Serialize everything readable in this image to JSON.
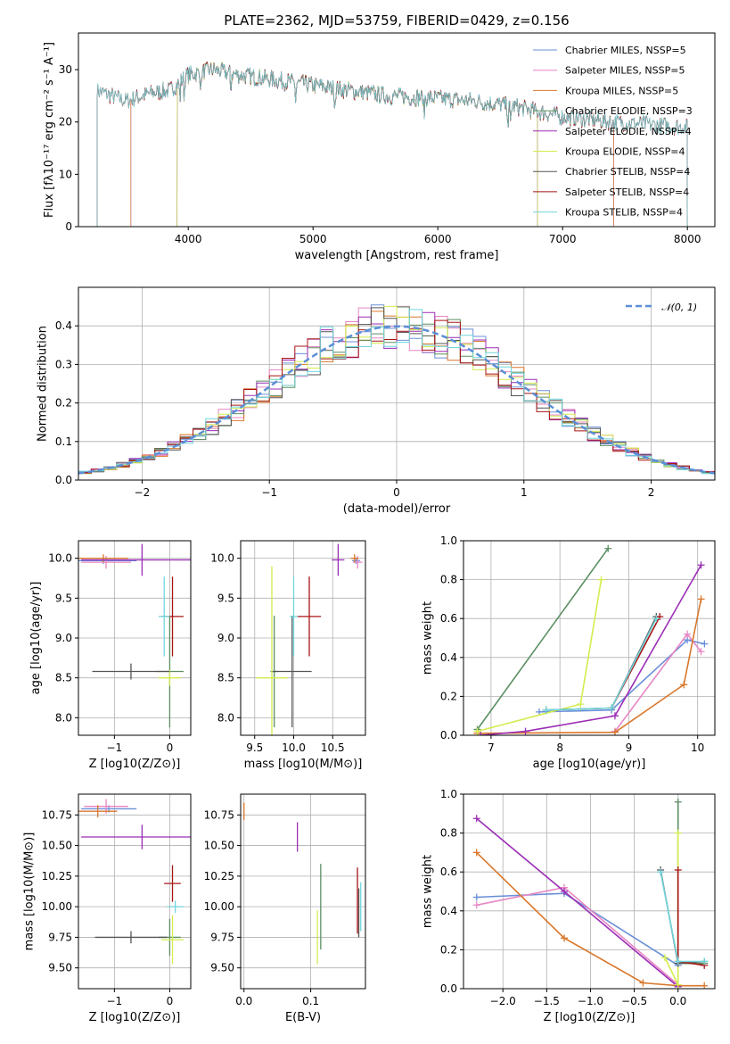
{
  "title": "PLATE=2362, MJD=53759, FIBERID=0429, z=0.156",
  "colors": [
    "#6a8fd8",
    "#e787c4",
    "#d9772b",
    "#5b8f62",
    "#9b2db5",
    "#d4ec4e",
    "#555555",
    "#a81515",
    "#6fd6dc"
  ],
  "chart_data": [
    {
      "id": "spectrum",
      "type": "line",
      "xlabel": "wavelength [Angstrom, rest frame]",
      "ylabel": "Flux [fλ10⁻¹⁷ erg cm⁻² s⁻¹ A⁻¹]",
      "xlim": [
        3120,
        8220
      ],
      "ylim": [
        0,
        37
      ],
      "xticks": [
        4000,
        5000,
        6000,
        7000,
        8000
      ],
      "yticks": [
        0,
        10,
        20,
        30
      ],
      "grid": false,
      "legend": "right",
      "series": [
        {
          "name": "Chabrier MILES, NSSP=5",
          "coverage": [
            3540,
            7410
          ]
        },
        {
          "name": "Salpeter MILES, NSSP=5",
          "coverage": [
            3540,
            7410
          ]
        },
        {
          "name": "Kroupa MILES, NSSP=5",
          "coverage": [
            3540,
            7410
          ]
        },
        {
          "name": "Chabrier ELODIE, NSSP=3",
          "coverage": [
            3910,
            6800
          ]
        },
        {
          "name": "Salpeter ELODIE, NSSP=4",
          "coverage": [
            3910,
            6800
          ]
        },
        {
          "name": "Kroupa ELODIE, NSSP=4",
          "coverage": [
            3910,
            6800
          ]
        },
        {
          "name": "Chabrier STELIB, NSSP=4",
          "coverage": [
            3270,
            8000
          ]
        },
        {
          "name": "Salpeter STELIB, NSSP=4",
          "coverage": [
            3270,
            8000
          ]
        },
        {
          "name": "Kroupa STELIB, NSSP=4",
          "coverage": [
            3270,
            8000
          ]
        }
      ],
      "continuum": [
        [
          3270,
          26
        ],
        [
          3500,
          24
        ],
        [
          3700,
          25.5
        ],
        [
          3850,
          26
        ],
        [
          4000,
          29
        ],
        [
          4200,
          30
        ],
        [
          4400,
          29
        ],
        [
          4700,
          28
        ],
        [
          5000,
          27
        ],
        [
          5300,
          26
        ],
        [
          5600,
          25
        ],
        [
          6000,
          24.5
        ],
        [
          6300,
          24
        ],
        [
          6600,
          23
        ],
        [
          7000,
          21
        ],
        [
          7400,
          20
        ],
        [
          7700,
          19.5
        ],
        [
          8000,
          19
        ]
      ]
    },
    {
      "id": "residuals",
      "type": "line",
      "xlabel": "(data-model)/error",
      "ylabel": "Normed distribution",
      "xlim": [
        -2.5,
        2.5
      ],
      "ylim": [
        0,
        0.5
      ],
      "xticks": [
        -2,
        -1,
        0,
        1,
        2
      ],
      "yticks": [
        0.0,
        0.1,
        0.2,
        0.3,
        0.4
      ],
      "grid": true,
      "legend": "top-right",
      "reference": {
        "name": "𝒩(0, 1)",
        "mean": 0,
        "sigma": 1,
        "color": "#5a8fd6"
      },
      "bin_width": 0.1
    },
    {
      "id": "age-vs-Z",
      "type": "scatter",
      "xlabel": "Z [log10(Z/Z⊙)]",
      "ylabel": "age  [log10(age/yr)]",
      "xlim": [
        -1.65,
        0.38
      ],
      "ylim": [
        7.78,
        10.22
      ],
      "xticks": [
        -1,
        0
      ],
      "yticks": [
        8.0,
        8.5,
        9.0,
        9.5,
        10.0
      ],
      "grid": true,
      "points": [
        {
          "c": 0,
          "x": -1.2,
          "y": 9.97,
          "ex": 0.6,
          "ey": 0.04
        },
        {
          "c": 1,
          "x": -1.15,
          "y": 9.95,
          "ex": 0.45,
          "ey": 0.08
        },
        {
          "c": 2,
          "x": -1.2,
          "y": 10.0,
          "ex": 0.45,
          "ey": 0.05
        },
        {
          "c": 3,
          "x": 0.0,
          "y": 8.58,
          "ex": 0.25,
          "ey": 0.7
        },
        {
          "c": 4,
          "x": -0.5,
          "y": 9.98,
          "ex": 1.1,
          "ey": 0.2
        },
        {
          "c": 5,
          "x": 0.0,
          "y": 8.5,
          "ex": 0.2,
          "ey": 0.1
        },
        {
          "c": 6,
          "x": -0.7,
          "y": 8.58,
          "ex": 0.7,
          "ey": 0.1
        },
        {
          "c": 7,
          "x": 0.05,
          "y": 9.27,
          "ex": 0.2,
          "ey": 0.5
        },
        {
          "c": 8,
          "x": -0.1,
          "y": 9.27,
          "ex": 0.1,
          "ey": 0.5
        }
      ]
    },
    {
      "id": "age-vs-mass",
      "type": "scatter",
      "xlabel": "mass [log10(M/M⊙)]",
      "ylabel": "",
      "xlim": [
        9.32,
        10.92
      ],
      "ylim": [
        7.78,
        10.22
      ],
      "xticks": [
        9.5,
        10.0,
        10.5
      ],
      "yticks": [
        8.0,
        8.5,
        9.0,
        9.5,
        10.0
      ],
      "grid": true,
      "points": [
        {
          "c": 0,
          "x": 10.8,
          "y": 9.97,
          "ex": 0.05,
          "ey": 0.04
        },
        {
          "c": 1,
          "x": 10.82,
          "y": 9.95,
          "ex": 0.06,
          "ey": 0.08
        },
        {
          "c": 2,
          "x": 10.78,
          "y": 10.0,
          "ex": 0.05,
          "ey": 0.05
        },
        {
          "c": 3,
          "x": 9.75,
          "y": 8.58,
          "ex": 0.05,
          "ey": 0.7
        },
        {
          "c": 4,
          "x": 10.57,
          "y": 9.98,
          "ex": 0.08,
          "ey": 0.2
        },
        {
          "c": 5,
          "x": 9.72,
          "y": 8.5,
          "ex": 0.2,
          "ey": 1.4
        },
        {
          "c": 6,
          "x": 9.98,
          "y": 8.58,
          "ex": 0.25,
          "ey": 0.7
        },
        {
          "c": 7,
          "x": 10.2,
          "y": 9.27,
          "ex": 0.15,
          "ey": 0.5
        },
        {
          "c": 8,
          "x": 10.0,
          "y": 9.27,
          "ex": 0.05,
          "ey": 0.5
        }
      ]
    },
    {
      "id": "weight-vs-age",
      "type": "line",
      "xlabel": "age  [log10(age/yr)]",
      "ylabel": "mass weight",
      "xlim": [
        6.6,
        10.25
      ],
      "ylim": [
        0,
        1
      ],
      "xticks": [
        7,
        8,
        9,
        10
      ],
      "yticks": [
        0.0,
        0.2,
        0.4,
        0.6,
        0.8,
        1.0
      ],
      "grid": true,
      "series": [
        {
          "c": 0,
          "pts": [
            [
              7.7,
              0.12
            ],
            [
              8.75,
              0.13
            ],
            [
              9.85,
              0.49
            ],
            [
              10.1,
              0.47
            ]
          ]
        },
        {
          "c": 1,
          "pts": [
            [
              8.8,
              0.02
            ],
            [
              9.85,
              0.52
            ],
            [
              10.05,
              0.43
            ]
          ]
        },
        {
          "c": 2,
          "pts": [
            [
              6.8,
              0.01
            ],
            [
              8.8,
              0.015
            ],
            [
              9.8,
              0.26
            ],
            [
              10.05,
              0.7
            ]
          ]
        },
        {
          "c": 3,
          "pts": [
            [
              6.8,
              0.03
            ],
            [
              8.7,
              0.96
            ]
          ]
        },
        {
          "c": 4,
          "pts": [
            [
              6.85,
              0.0
            ],
            [
              7.5,
              0.02
            ],
            [
              8.8,
              0.1
            ],
            [
              10.05,
              0.875
            ]
          ]
        },
        {
          "c": 5,
          "pts": [
            [
              6.8,
              0.02
            ],
            [
              8.3,
              0.16
            ],
            [
              8.6,
              0.8
            ]
          ]
        },
        {
          "c": 6,
          "pts": [
            [
              7.8,
              0.13
            ],
            [
              8.75,
              0.14
            ],
            [
              9.4,
              0.61
            ]
          ]
        },
        {
          "c": 7,
          "pts": [
            [
              8.75,
              0.14
            ],
            [
              9.45,
              0.61
            ]
          ]
        },
        {
          "c": 8,
          "pts": [
            [
              7.8,
              0.13
            ],
            [
              8.75,
              0.14
            ],
            [
              9.4,
              0.6
            ]
          ]
        }
      ]
    },
    {
      "id": "mass-vs-Z",
      "type": "scatter",
      "xlabel": "Z [log10(Z/Z⊙)]",
      "ylabel": "mass [log10(M/M⊙)]",
      "xlim": [
        -1.65,
        0.38
      ],
      "ylim": [
        9.33,
        10.92
      ],
      "xticks": [
        -1,
        0
      ],
      "yticks": [
        9.5,
        9.75,
        10.0,
        10.25,
        10.5,
        10.75
      ],
      "grid": true,
      "points": [
        {
          "c": 0,
          "x": -1.1,
          "y": 10.8,
          "ex": 0.5,
          "ey": 0.03
        },
        {
          "c": 1,
          "x": -1.15,
          "y": 10.82,
          "ex": 0.4,
          "ey": 0.06
        },
        {
          "c": 2,
          "x": -1.3,
          "y": 10.78,
          "ex": 0.35,
          "ey": 0.05
        },
        {
          "c": 3,
          "x": 0.0,
          "y": 9.75,
          "ex": 0.2,
          "ey": 0.15
        },
        {
          "c": 4,
          "x": -0.5,
          "y": 10.57,
          "ex": 1.1,
          "ey": 0.1
        },
        {
          "c": 5,
          "x": 0.05,
          "y": 9.73,
          "ex": 0.2,
          "ey": 0.2
        },
        {
          "c": 6,
          "x": -0.7,
          "y": 9.75,
          "ex": 0.65,
          "ey": 0.05
        },
        {
          "c": 7,
          "x": 0.05,
          "y": 10.19,
          "ex": 0.15,
          "ey": 0.15
        },
        {
          "c": 8,
          "x": 0.1,
          "y": 10.0,
          "ex": 0.15,
          "ey": 0.05
        }
      ]
    },
    {
      "id": "mass-vs-EBV",
      "type": "scatter",
      "xlabel": "E(B-V)",
      "ylabel": "",
      "xlim": [
        -0.005,
        0.182
      ],
      "ylim": [
        9.33,
        10.92
      ],
      "xticks": [
        0.0,
        0.1
      ],
      "yticks": [
        9.5,
        9.75,
        10.0,
        10.25,
        10.5,
        10.75
      ],
      "grid": true,
      "points": [
        {
          "c": 2,
          "x": 0.0,
          "y": 10.78,
          "ex": 0.0,
          "ey": 0.07
        },
        {
          "c": 4,
          "x": 0.08,
          "y": 10.57,
          "ex": 0.0,
          "ey": 0.12
        },
        {
          "c": 5,
          "x": 0.11,
          "y": 9.75,
          "ex": 0.0,
          "ey": 0.22
        },
        {
          "c": 3,
          "x": 0.115,
          "y": 10.0,
          "ex": 0.0,
          "ey": 0.35
        },
        {
          "c": 7,
          "x": 0.17,
          "y": 10.05,
          "ex": 0.0,
          "ey": 0.27
        },
        {
          "c": 8,
          "x": 0.175,
          "y": 10.0,
          "ex": 0.0,
          "ey": 0.2
        },
        {
          "c": 6,
          "x": 0.172,
          "y": 9.95,
          "ex": 0.0,
          "ey": 0.2
        }
      ]
    },
    {
      "id": "weight-vs-Z",
      "type": "line",
      "xlabel": "Z [log10(Z/Z⊙)]",
      "ylabel": "mass weight",
      "xlim": [
        -2.45,
        0.42
      ],
      "ylim": [
        0,
        1
      ],
      "xticks": [
        -2.0,
        -1.5,
        -1.0,
        -0.5,
        0.0
      ],
      "yticks": [
        0.0,
        0.2,
        0.4,
        0.6,
        0.8,
        1.0
      ],
      "grid": true,
      "series": [
        {
          "c": 0,
          "pts": [
            [
              -2.3,
              0.47
            ],
            [
              -1.3,
              0.49
            ],
            [
              0.0,
              0.12
            ]
          ]
        },
        {
          "c": 1,
          "pts": [
            [
              -2.3,
              0.43
            ],
            [
              -1.3,
              0.52
            ],
            [
              0.0,
              0.02
            ]
          ]
        },
        {
          "c": 2,
          "pts": [
            [
              -2.3,
              0.7
            ],
            [
              -1.3,
              0.26
            ],
            [
              -0.4,
              0.03
            ],
            [
              0.0,
              0.015
            ],
            [
              0.3,
              0.015
            ]
          ]
        },
        {
          "c": 3,
          "pts": [
            [
              0.0,
              0.96
            ],
            [
              0.0,
              0.13
            ],
            [
              0.3,
              0.13
            ]
          ]
        },
        {
          "c": 4,
          "pts": [
            [
              -2.3,
              0.875
            ],
            [
              -1.3,
              0.5
            ],
            [
              0.0,
              0.01
            ]
          ]
        },
        {
          "c": 5,
          "pts": [
            [
              0.0,
              0.8
            ],
            [
              0.0,
              0.02
            ],
            [
              -0.15,
              0.16
            ]
          ]
        },
        {
          "c": 6,
          "pts": [
            [
              -0.2,
              0.61
            ],
            [
              0.0,
              0.13
            ],
            [
              0.3,
              0.14
            ]
          ]
        },
        {
          "c": 7,
          "pts": [
            [
              0.0,
              0.61
            ],
            [
              0.0,
              0.14
            ],
            [
              0.3,
              0.12
            ]
          ]
        },
        {
          "c": 8,
          "pts": [
            [
              -0.2,
              0.6
            ],
            [
              0.0,
              0.14
            ],
            [
              0.3,
              0.14
            ]
          ]
        }
      ]
    }
  ]
}
